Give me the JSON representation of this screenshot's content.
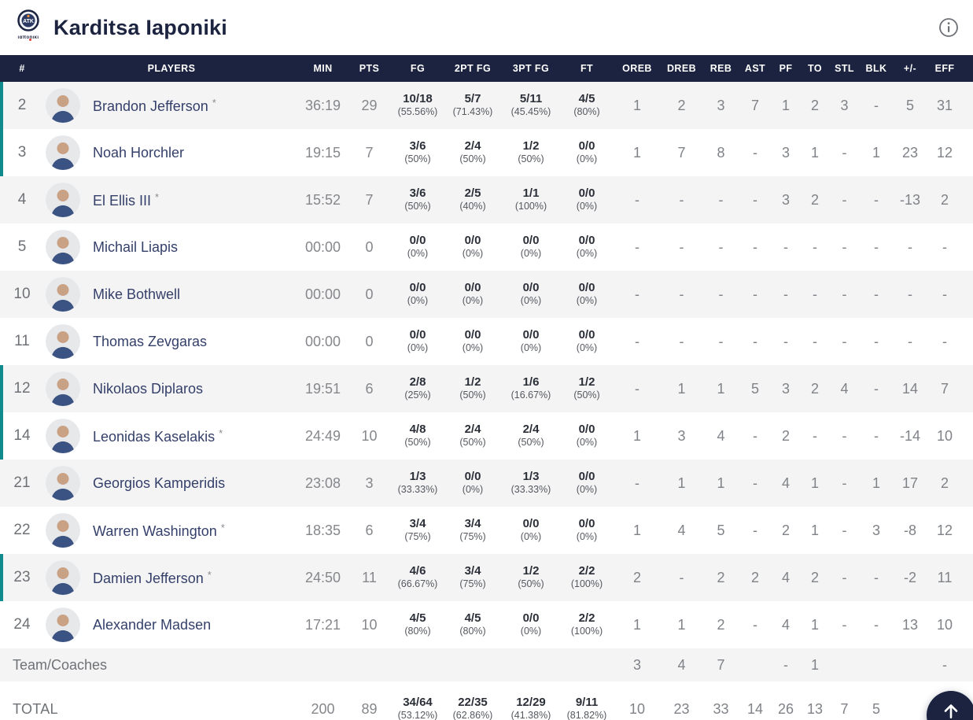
{
  "header": {
    "team_name": "Karditsa Iaponiki",
    "logo": {
      "crest_text": "ATK",
      "wordmark": "ιαποnικι"
    }
  },
  "table": {
    "columns": [
      "#",
      "PLAYERS",
      "MIN",
      "PTS",
      "FG",
      "2PT FG",
      "3PT FG",
      "FT",
      "OREB",
      "DREB",
      "REB",
      "AST",
      "PF",
      "TO",
      "STL",
      "BLK",
      "+/-",
      "EFF"
    ],
    "players": [
      {
        "num": "2",
        "name": "Brandon Jefferson",
        "star": "*",
        "on_court": true,
        "min": "36:19",
        "pts": "29",
        "fg": "10/18",
        "fg_pct": "(55.56%)",
        "fg2": "5/7",
        "fg2_pct": "(71.43%)",
        "fg3": "5/11",
        "fg3_pct": "(45.45%)",
        "ft": "4/5",
        "ft_pct": "(80%)",
        "oreb": "1",
        "dreb": "2",
        "reb": "3",
        "ast": "7",
        "pf": "1",
        "to": "2",
        "stl": "3",
        "blk": "-",
        "pm": "5",
        "eff": "31"
      },
      {
        "num": "3",
        "name": "Noah Horchler",
        "star": "",
        "on_court": true,
        "min": "19:15",
        "pts": "7",
        "fg": "3/6",
        "fg_pct": "(50%)",
        "fg2": "2/4",
        "fg2_pct": "(50%)",
        "fg3": "1/2",
        "fg3_pct": "(50%)",
        "ft": "0/0",
        "ft_pct": "(0%)",
        "oreb": "1",
        "dreb": "7",
        "reb": "8",
        "ast": "-",
        "pf": "3",
        "to": "1",
        "stl": "-",
        "blk": "1",
        "pm": "23",
        "eff": "12"
      },
      {
        "num": "4",
        "name": "El Ellis III",
        "star": "*",
        "on_court": false,
        "min": "15:52",
        "pts": "7",
        "fg": "3/6",
        "fg_pct": "(50%)",
        "fg2": "2/5",
        "fg2_pct": "(40%)",
        "fg3": "1/1",
        "fg3_pct": "(100%)",
        "ft": "0/0",
        "ft_pct": "(0%)",
        "oreb": "-",
        "dreb": "-",
        "reb": "-",
        "ast": "-",
        "pf": "3",
        "to": "2",
        "stl": "-",
        "blk": "-",
        "pm": "-13",
        "eff": "2"
      },
      {
        "num": "5",
        "name": "Michail Liapis",
        "star": "",
        "on_court": false,
        "min": "00:00",
        "pts": "0",
        "fg": "0/0",
        "fg_pct": "(0%)",
        "fg2": "0/0",
        "fg2_pct": "(0%)",
        "fg3": "0/0",
        "fg3_pct": "(0%)",
        "ft": "0/0",
        "ft_pct": "(0%)",
        "oreb": "-",
        "dreb": "-",
        "reb": "-",
        "ast": "-",
        "pf": "-",
        "to": "-",
        "stl": "-",
        "blk": "-",
        "pm": "-",
        "eff": "-"
      },
      {
        "num": "10",
        "name": "Mike Bothwell",
        "star": "",
        "on_court": false,
        "min": "00:00",
        "pts": "0",
        "fg": "0/0",
        "fg_pct": "(0%)",
        "fg2": "0/0",
        "fg2_pct": "(0%)",
        "fg3": "0/0",
        "fg3_pct": "(0%)",
        "ft": "0/0",
        "ft_pct": "(0%)",
        "oreb": "-",
        "dreb": "-",
        "reb": "-",
        "ast": "-",
        "pf": "-",
        "to": "-",
        "stl": "-",
        "blk": "-",
        "pm": "-",
        "eff": "-"
      },
      {
        "num": "11",
        "name": "Thomas Zevgaras",
        "star": "",
        "on_court": false,
        "min": "00:00",
        "pts": "0",
        "fg": "0/0",
        "fg_pct": "(0%)",
        "fg2": "0/0",
        "fg2_pct": "(0%)",
        "fg3": "0/0",
        "fg3_pct": "(0%)",
        "ft": "0/0",
        "ft_pct": "(0%)",
        "oreb": "-",
        "dreb": "-",
        "reb": "-",
        "ast": "-",
        "pf": "-",
        "to": "-",
        "stl": "-",
        "blk": "-",
        "pm": "-",
        "eff": "-"
      },
      {
        "num": "12",
        "name": "Nikolaos Diplaros",
        "star": "",
        "on_court": true,
        "min": "19:51",
        "pts": "6",
        "fg": "2/8",
        "fg_pct": "(25%)",
        "fg2": "1/2",
        "fg2_pct": "(50%)",
        "fg3": "1/6",
        "fg3_pct": "(16.67%)",
        "ft": "1/2",
        "ft_pct": "(50%)",
        "oreb": "-",
        "dreb": "1",
        "reb": "1",
        "ast": "5",
        "pf": "3",
        "to": "2",
        "stl": "4",
        "blk": "-",
        "pm": "14",
        "eff": "7"
      },
      {
        "num": "14",
        "name": "Leonidas Kaselakis",
        "star": "*",
        "on_court": true,
        "min": "24:49",
        "pts": "10",
        "fg": "4/8",
        "fg_pct": "(50%)",
        "fg2": "2/4",
        "fg2_pct": "(50%)",
        "fg3": "2/4",
        "fg3_pct": "(50%)",
        "ft": "0/0",
        "ft_pct": "(0%)",
        "oreb": "1",
        "dreb": "3",
        "reb": "4",
        "ast": "-",
        "pf": "2",
        "to": "-",
        "stl": "-",
        "blk": "-",
        "pm": "-14",
        "eff": "10"
      },
      {
        "num": "21",
        "name": "Georgios Kamperidis",
        "star": "",
        "on_court": false,
        "min": "23:08",
        "pts": "3",
        "fg": "1/3",
        "fg_pct": "(33.33%)",
        "fg2": "0/0",
        "fg2_pct": "(0%)",
        "fg3": "1/3",
        "fg3_pct": "(33.33%)",
        "ft": "0/0",
        "ft_pct": "(0%)",
        "oreb": "-",
        "dreb": "1",
        "reb": "1",
        "ast": "-",
        "pf": "4",
        "to": "1",
        "stl": "-",
        "blk": "1",
        "pm": "17",
        "eff": "2"
      },
      {
        "num": "22",
        "name": "Warren Washington",
        "star": "*",
        "on_court": false,
        "min": "18:35",
        "pts": "6",
        "fg": "3/4",
        "fg_pct": "(75%)",
        "fg2": "3/4",
        "fg2_pct": "(75%)",
        "fg3": "0/0",
        "fg3_pct": "(0%)",
        "ft": "0/0",
        "ft_pct": "(0%)",
        "oreb": "1",
        "dreb": "4",
        "reb": "5",
        "ast": "-",
        "pf": "2",
        "to": "1",
        "stl": "-",
        "blk": "3",
        "pm": "-8",
        "eff": "12"
      },
      {
        "num": "23",
        "name": "Damien Jefferson",
        "star": "*",
        "on_court": true,
        "min": "24:50",
        "pts": "11",
        "fg": "4/6",
        "fg_pct": "(66.67%)",
        "fg2": "3/4",
        "fg2_pct": "(75%)",
        "fg3": "1/2",
        "fg3_pct": "(50%)",
        "ft": "2/2",
        "ft_pct": "(100%)",
        "oreb": "2",
        "dreb": "-",
        "reb": "2",
        "ast": "2",
        "pf": "4",
        "to": "2",
        "stl": "-",
        "blk": "-",
        "pm": "-2",
        "eff": "11"
      },
      {
        "num": "24",
        "name": "Alexander Madsen",
        "star": "",
        "on_court": false,
        "min": "17:21",
        "pts": "10",
        "fg": "4/5",
        "fg_pct": "(80%)",
        "fg2": "4/5",
        "fg2_pct": "(80%)",
        "fg3": "0/0",
        "fg3_pct": "(0%)",
        "ft": "2/2",
        "ft_pct": "(100%)",
        "oreb": "1",
        "dreb": "1",
        "reb": "2",
        "ast": "-",
        "pf": "4",
        "to": "1",
        "stl": "-",
        "blk": "-",
        "pm": "13",
        "eff": "10"
      }
    ],
    "team_row": {
      "label": "Team/Coaches",
      "oreb": "3",
      "dreb": "4",
      "reb": "7",
      "ast": "",
      "pf": "-",
      "to": "1",
      "stl": "",
      "blk": "",
      "pm": "",
      "eff": "-"
    },
    "total_row": {
      "label": "TOTAL",
      "min": "200",
      "pts": "89",
      "fg": "34/64",
      "fg_pct": "(53.12%)",
      "fg2": "22/35",
      "fg2_pct": "(62.86%)",
      "fg3": "12/29",
      "fg3_pct": "(41.38%)",
      "ft": "9/11",
      "ft_pct": "(81.82%)",
      "oreb": "10",
      "dreb": "23",
      "reb": "33",
      "ast": "14",
      "pf": "26",
      "to": "13",
      "stl": "7",
      "blk": "5",
      "pm": "",
      "eff": ""
    }
  },
  "colors": {
    "navy": "#1b2340",
    "teal_on_court": "#0f8b8d",
    "row_alt": "#f4f4f5",
    "accent_red": "#e03c31"
  }
}
